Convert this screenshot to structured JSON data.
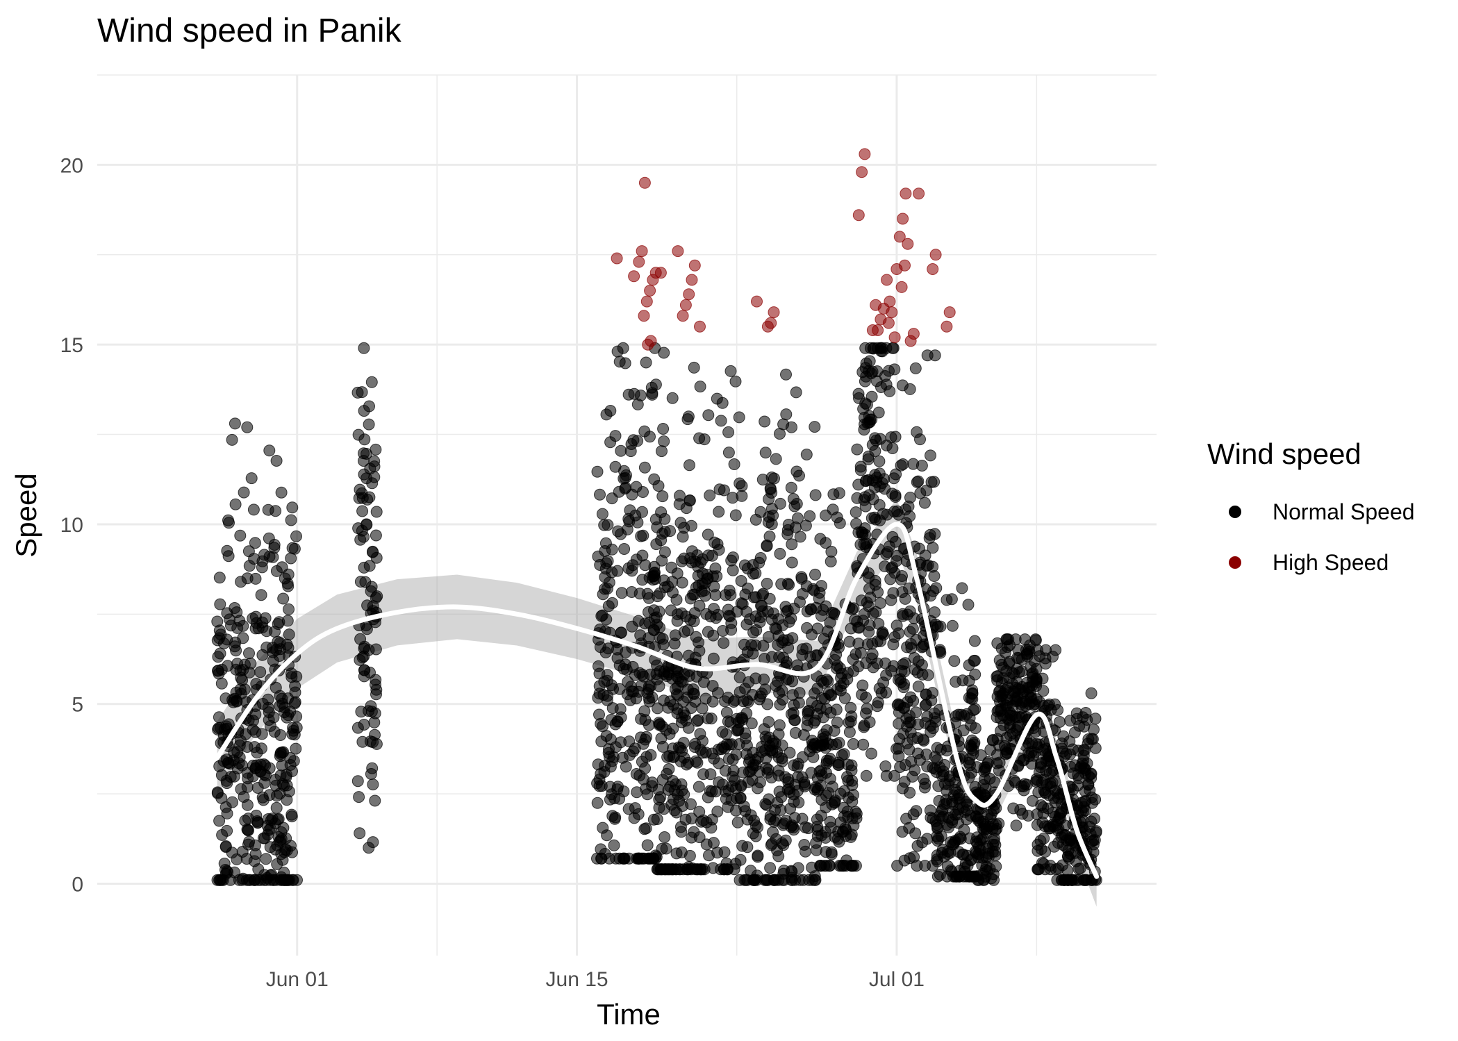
{
  "chart_data": {
    "type": "scatter",
    "title": "Wind speed in Panik",
    "xlabel": "Time",
    "ylabel": "Speed",
    "x_type": "date",
    "xlim": [
      "2024-05-22",
      "2024-07-14"
    ],
    "ylim": [
      -2,
      22.5
    ],
    "x_ticks": [
      {
        "date": "2024-06-01",
        "label": "Jun 01"
      },
      {
        "date": "2024-06-15",
        "label": "Jun 15"
      },
      {
        "date": "2024-07-01",
        "label": "Jul 01"
      }
    ],
    "x_minor_dates": [
      "2024-06-08",
      "2024-06-23",
      "2024-07-08"
    ],
    "y_ticks": [
      0,
      5,
      10,
      15,
      20
    ],
    "y_minor": [
      2.5,
      7.5,
      12.5,
      17.5,
      22.5
    ],
    "grid": true,
    "threshold": 15,
    "legend": {
      "title": "Wind speed",
      "position": "right",
      "entries": [
        {
          "label": "Normal Speed",
          "color": "#000000"
        },
        {
          "label": "High Speed",
          "color": "#8b0000"
        }
      ]
    },
    "series": [
      {
        "name": "Normal Speed",
        "color": "#000000",
        "segments": [
          {
            "start": "2024-05-28",
            "end": "2024-06-01",
            "min": 0.1,
            "max": 13.2,
            "center": 4.0,
            "spread": 3.0
          },
          {
            "start": "2024-06-04",
            "end": "2024-06-05",
            "min": 1.0,
            "max": 14.9,
            "center": 7.5,
            "spread": 3.5
          },
          {
            "start": "2024-06-16",
            "end": "2024-06-19",
            "min": 0.7,
            "max": 14.9,
            "center": 6.0,
            "spread": 4.0
          },
          {
            "start": "2024-06-19",
            "end": "2024-06-23",
            "min": 0.4,
            "max": 14.8,
            "center": 4.5,
            "spread": 3.5
          },
          {
            "start": "2024-06-23",
            "end": "2024-06-27",
            "min": 0.1,
            "max": 14.8,
            "center": 5.0,
            "spread": 3.5
          },
          {
            "start": "2024-06-27",
            "end": "2024-06-29",
            "min": 0.5,
            "max": 11.0,
            "center": 3.5,
            "spread": 2.5
          },
          {
            "start": "2024-06-29",
            "end": "2024-07-01",
            "min": 3.0,
            "max": 14.9,
            "center": 10.0,
            "spread": 3.5
          },
          {
            "start": "2024-07-01",
            "end": "2024-07-03",
            "min": 0.5,
            "max": 14.7,
            "center": 6.5,
            "spread": 3.5
          },
          {
            "start": "2024-07-03",
            "end": "2024-07-05",
            "min": 0.2,
            "max": 8.3,
            "center": 2.5,
            "spread": 2.0
          },
          {
            "start": "2024-07-05",
            "end": "2024-07-06",
            "min": 0.1,
            "max": 4.0,
            "center": 1.5,
            "spread": 1.0
          },
          {
            "start": "2024-07-06",
            "end": "2024-07-08",
            "min": 1.2,
            "max": 6.8,
            "center": 5.0,
            "spread": 1.0
          },
          {
            "start": "2024-07-08",
            "end": "2024-07-09",
            "min": 0.4,
            "max": 6.5,
            "center": 3.0,
            "spread": 2.0
          },
          {
            "start": "2024-07-09",
            "end": "2024-07-11",
            "min": 0.1,
            "max": 5.3,
            "center": 2.0,
            "spread": 1.5
          }
        ]
      },
      {
        "name": "High Speed",
        "color": "#8b0000",
        "points": [
          [
            "2024-06-17",
            17.4
          ],
          [
            "2024-06-17",
            16.9
          ],
          [
            "2024-06-18",
            15.1
          ],
          [
            "2024-06-18",
            15.0
          ],
          [
            "2024-06-18",
            19.5
          ],
          [
            "2024-06-18",
            17.6
          ],
          [
            "2024-06-18",
            17.3
          ],
          [
            "2024-06-18",
            17.0
          ],
          [
            "2024-06-18",
            16.8
          ],
          [
            "2024-06-18",
            16.5
          ],
          [
            "2024-06-18",
            16.2
          ],
          [
            "2024-06-18",
            15.8
          ],
          [
            "2024-06-19",
            17.0
          ],
          [
            "2024-06-20",
            17.6
          ],
          [
            "2024-06-20",
            17.2
          ],
          [
            "2024-06-20",
            16.8
          ],
          [
            "2024-06-20",
            16.4
          ],
          [
            "2024-06-20",
            16.1
          ],
          [
            "2024-06-20",
            15.8
          ],
          [
            "2024-06-21",
            15.5
          ],
          [
            "2024-06-24",
            16.2
          ],
          [
            "2024-06-24",
            15.9
          ],
          [
            "2024-06-24",
            15.6
          ],
          [
            "2024-06-24",
            15.5
          ],
          [
            "2024-06-29",
            20.3
          ],
          [
            "2024-06-29",
            19.8
          ],
          [
            "2024-06-29",
            18.6
          ],
          [
            "2024-06-29",
            16.1
          ],
          [
            "2024-06-29",
            15.4
          ],
          [
            "2024-06-30",
            16.2
          ],
          [
            "2024-06-30",
            16.8
          ],
          [
            "2024-06-30",
            16.0
          ],
          [
            "2024-06-30",
            15.7
          ],
          [
            "2024-06-30",
            15.4
          ],
          [
            "2024-06-30",
            15.2
          ],
          [
            "2024-06-30",
            15.9
          ],
          [
            "2024-06-30",
            15.6
          ],
          [
            "2024-07-01",
            19.2
          ],
          [
            "2024-07-01",
            18.5
          ],
          [
            "2024-07-01",
            18.0
          ],
          [
            "2024-07-01",
            17.1
          ],
          [
            "2024-07-01",
            15.3
          ],
          [
            "2024-07-01",
            15.1
          ],
          [
            "2024-07-01",
            17.8
          ],
          [
            "2024-07-01",
            17.2
          ],
          [
            "2024-07-01",
            16.6
          ],
          [
            "2024-07-02",
            19.2
          ],
          [
            "2024-07-02",
            17.5
          ],
          [
            "2024-07-02",
            17.1
          ],
          [
            "2024-07-03",
            15.9
          ],
          [
            "2024-07-03",
            15.5
          ]
        ]
      },
      {
        "name": "Smooth",
        "color": "#ffffff",
        "type": "line",
        "points": [
          [
            "2024-05-28",
            3.5
          ],
          [
            "2024-05-30",
            5.2
          ],
          [
            "2024-06-01",
            6.4
          ],
          [
            "2024-06-03",
            7.1
          ],
          [
            "2024-06-06",
            7.55
          ],
          [
            "2024-06-09",
            7.7
          ],
          [
            "2024-06-12",
            7.5
          ],
          [
            "2024-06-15",
            7.1
          ],
          [
            "2024-06-18",
            6.6
          ],
          [
            "2024-06-21",
            6.0
          ],
          [
            "2024-06-24",
            6.1
          ],
          [
            "2024-06-27",
            6.0
          ],
          [
            "2024-06-29",
            8.5
          ],
          [
            "2024-07-01",
            10.0
          ],
          [
            "2024-07-02",
            8.5
          ],
          [
            "2024-07-04",
            3.5
          ],
          [
            "2024-07-05",
            2.3
          ],
          [
            "2024-07-06",
            2.5
          ],
          [
            "2024-07-08",
            4.7
          ],
          [
            "2024-07-09",
            3.5
          ],
          [
            "2024-07-10",
            1.5
          ],
          [
            "2024-07-11",
            0.2
          ]
        ],
        "band": [
          1.8,
          0.8
        ]
      }
    ]
  }
}
